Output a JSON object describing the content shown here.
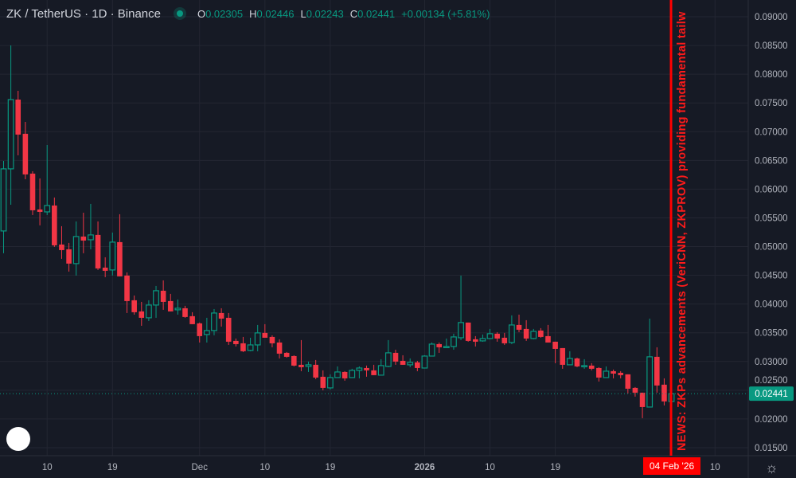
{
  "header": {
    "symbol": "ZK / TetherUS · 1D · Binance",
    "ohlc": [
      {
        "key": "O",
        "value": "0.02305"
      },
      {
        "key": "H",
        "value": "0.02446"
      },
      {
        "key": "L",
        "value": "0.02243"
      },
      {
        "key": "C",
        "value": "0.02441"
      }
    ],
    "change": "+0.00134 (+5.81%)"
  },
  "news_annotation": "NEWS: ZKPs advancements (VeriCNN, ZKPROV) providing fundamental tailw",
  "crosshair_date": "04 Feb '26",
  "logo_text": "TV",
  "colors": {
    "up": "#089981",
    "down": "#f23645",
    "background": "#161a25",
    "grid": "#232632",
    "news": "#ff0000"
  },
  "chart_data": {
    "type": "candlestick",
    "title": "ZK / TetherUS · 1D · Binance",
    "ylim": [
      0.0135,
      0.0915
    ],
    "y_ticks": [
      "0.09000",
      "0.08500",
      "0.08000",
      "0.07500",
      "0.07000",
      "0.06500",
      "0.06000",
      "0.05500",
      "0.05000",
      "0.04500",
      "0.04000",
      "0.03500",
      "0.03000",
      "0.02500",
      "0.02000",
      "0.01500"
    ],
    "x_ticks": [
      {
        "label": "10",
        "index": 6
      },
      {
        "label": "19",
        "index": 15
      },
      {
        "label": "Dec",
        "index": 27
      },
      {
        "label": "10",
        "index": 36
      },
      {
        "label": "19",
        "index": 45
      },
      {
        "label": "2026",
        "index": 58
      },
      {
        "label": "10",
        "index": 67
      },
      {
        "label": "19",
        "index": 76
      },
      {
        "label": "10",
        "index": 98
      }
    ],
    "last_price": "0.02441",
    "last_value": 0.02441,
    "candles": [
      [
        0.05272,
        0.06491,
        0.04884,
        0.06353
      ],
      [
        0.06353,
        0.08501,
        0.05729,
        0.07558
      ],
      [
        0.07558,
        0.07711,
        0.06588,
        0.06949
      ],
      [
        0.06963,
        0.0717,
        0.06172,
        0.06256
      ],
      [
        0.0627,
        0.06311,
        0.05549,
        0.05632
      ],
      [
        0.05646,
        0.06186,
        0.05369,
        0.05604
      ],
      [
        0.05604,
        0.06768,
        0.05549,
        0.05715
      ],
      [
        0.05715,
        0.05854,
        0.04995,
        0.05022
      ],
      [
        0.05036,
        0.05355,
        0.04787,
        0.04939
      ],
      [
        0.04953,
        0.05064,
        0.04565,
        0.04704
      ],
      [
        0.04704,
        0.05438,
        0.04496,
        0.05175
      ],
      [
        0.05175,
        0.0559,
        0.04884,
        0.05105
      ],
      [
        0.05119,
        0.05743,
        0.04953,
        0.05203
      ],
      [
        0.05203,
        0.05438,
        0.04593,
        0.0462
      ],
      [
        0.04634,
        0.04814,
        0.04468,
        0.04579
      ],
      [
        0.04593,
        0.05244,
        0.04496,
        0.05078
      ],
      [
        0.05078,
        0.05563,
        0.04482,
        0.04482
      ],
      [
        0.04496,
        0.04551,
        0.03844,
        0.04052
      ],
      [
        0.04066,
        0.04149,
        0.03816,
        0.03858
      ],
      [
        0.03872,
        0.04038,
        0.03622,
        0.03761
      ],
      [
        0.03761,
        0.04066,
        0.03705,
        0.03983
      ],
      [
        0.03983,
        0.04315,
        0.03761,
        0.04232
      ],
      [
        0.04232,
        0.04412,
        0.039,
        0.04038
      ],
      [
        0.04052,
        0.04177,
        0.03872,
        0.03872
      ],
      [
        0.039,
        0.0408,
        0.03816,
        0.03927
      ],
      [
        0.03927,
        0.03969,
        0.03761,
        0.03775
      ],
      [
        0.03789,
        0.03858,
        0.0365,
        0.0365
      ],
      [
        0.03664,
        0.03678,
        0.03331,
        0.03442
      ],
      [
        0.0347,
        0.03761,
        0.03331,
        0.03539
      ],
      [
        0.03539,
        0.03913,
        0.03456,
        0.03844
      ],
      [
        0.03844,
        0.03927,
        0.03608,
        0.03747
      ],
      [
        0.03761,
        0.03844,
        0.03289,
        0.03345
      ],
      [
        0.03359,
        0.034,
        0.03262,
        0.03303
      ],
      [
        0.03317,
        0.03428,
        0.03165,
        0.03179
      ],
      [
        0.03193,
        0.03414,
        0.03179,
        0.03289
      ],
      [
        0.03289,
        0.03636,
        0.03179,
        0.03498
      ],
      [
        0.03498,
        0.0365,
        0.03414,
        0.03414
      ],
      [
        0.03428,
        0.03456,
        0.03248,
        0.03317
      ],
      [
        0.03331,
        0.03387,
        0.03054,
        0.03137
      ],
      [
        0.03151,
        0.03165,
        0.03068,
        0.03082
      ],
      [
        0.03095,
        0.03109,
        0.02915,
        0.02929
      ],
      [
        0.02943,
        0.03373,
        0.02832,
        0.02901
      ],
      [
        0.02915,
        0.02999,
        0.02818,
        0.02943
      ],
      [
        0.02943,
        0.03026,
        0.02693,
        0.02721
      ],
      [
        0.02735,
        0.02846,
        0.02499,
        0.02541
      ],
      [
        0.02541,
        0.02777,
        0.02513,
        0.02721
      ],
      [
        0.02721,
        0.02915,
        0.02721,
        0.02818
      ],
      [
        0.02818,
        0.02832,
        0.02666,
        0.02707
      ],
      [
        0.02721,
        0.02874,
        0.02721,
        0.02846
      ],
      [
        0.02846,
        0.02915,
        0.02707,
        0.02887
      ],
      [
        0.02887,
        0.02929,
        0.02735,
        0.02846
      ],
      [
        0.02846,
        0.02943,
        0.02763,
        0.02763
      ],
      [
        0.02763,
        0.0304,
        0.02763,
        0.02929
      ],
      [
        0.02915,
        0.03373,
        0.02901,
        0.03151
      ],
      [
        0.03151,
        0.03206,
        0.02943,
        0.02999
      ],
      [
        0.03012,
        0.03109,
        0.02943,
        0.02943
      ],
      [
        0.02943,
        0.03054,
        0.02901,
        0.02985
      ],
      [
        0.02985,
        0.03012,
        0.02832,
        0.02887
      ],
      [
        0.02887,
        0.03109,
        0.02887,
        0.03095
      ],
      [
        0.03095,
        0.03331,
        0.03095,
        0.03303
      ],
      [
        0.03303,
        0.03331,
        0.03151,
        0.03248
      ],
      [
        0.03248,
        0.034,
        0.03248,
        0.03262
      ],
      [
        0.03262,
        0.03484,
        0.03206,
        0.03428
      ],
      [
        0.03414,
        0.04496,
        0.03373,
        0.03678
      ],
      [
        0.03678,
        0.03678,
        0.03345,
        0.03359
      ],
      [
        0.03387,
        0.03442,
        0.03262,
        0.03345
      ],
      [
        0.03359,
        0.0347,
        0.03345,
        0.034
      ],
      [
        0.034,
        0.03567,
        0.03387,
        0.03484
      ],
      [
        0.03484,
        0.03511,
        0.03345,
        0.034
      ],
      [
        0.03414,
        0.03498,
        0.03289,
        0.03317
      ],
      [
        0.03331,
        0.03803,
        0.03303,
        0.03636
      ],
      [
        0.03636,
        0.03816,
        0.03511,
        0.03553
      ],
      [
        0.03567,
        0.03719,
        0.03359,
        0.034
      ],
      [
        0.034,
        0.03567,
        0.03387,
        0.03525
      ],
      [
        0.03539,
        0.03581,
        0.03414,
        0.03428
      ],
      [
        0.03442,
        0.03636,
        0.03331,
        0.03331
      ],
      [
        0.03345,
        0.03345,
        0.02971,
        0.0322
      ],
      [
        0.03234,
        0.03234,
        0.02874,
        0.02943
      ],
      [
        0.02943,
        0.03179,
        0.02943,
        0.03054
      ],
      [
        0.03054,
        0.03068,
        0.02901,
        0.02915
      ],
      [
        0.02915,
        0.0304,
        0.02874,
        0.02929
      ],
      [
        0.02929,
        0.02971,
        0.02846,
        0.02874
      ],
      [
        0.02887,
        0.02901,
        0.02652,
        0.02721
      ],
      [
        0.02721,
        0.02915,
        0.02721,
        0.02832
      ],
      [
        0.02832,
        0.0286,
        0.02707,
        0.0279
      ],
      [
        0.02804,
        0.02832,
        0.02707,
        0.02763
      ],
      [
        0.02777,
        0.02777,
        0.02444,
        0.02527
      ],
      [
        0.02541,
        0.02555,
        0.02389,
        0.02458
      ],
      [
        0.02458,
        0.02458,
        0.02014,
        0.02208
      ],
      [
        0.02208,
        0.03747,
        0.02208,
        0.03082
      ],
      [
        0.03082,
        0.03248,
        0.02458,
        0.02583
      ],
      [
        0.02597,
        0.02707,
        0.02236,
        0.02306
      ],
      [
        0.02305,
        0.02446,
        0.02243,
        0.02441
      ]
    ]
  }
}
